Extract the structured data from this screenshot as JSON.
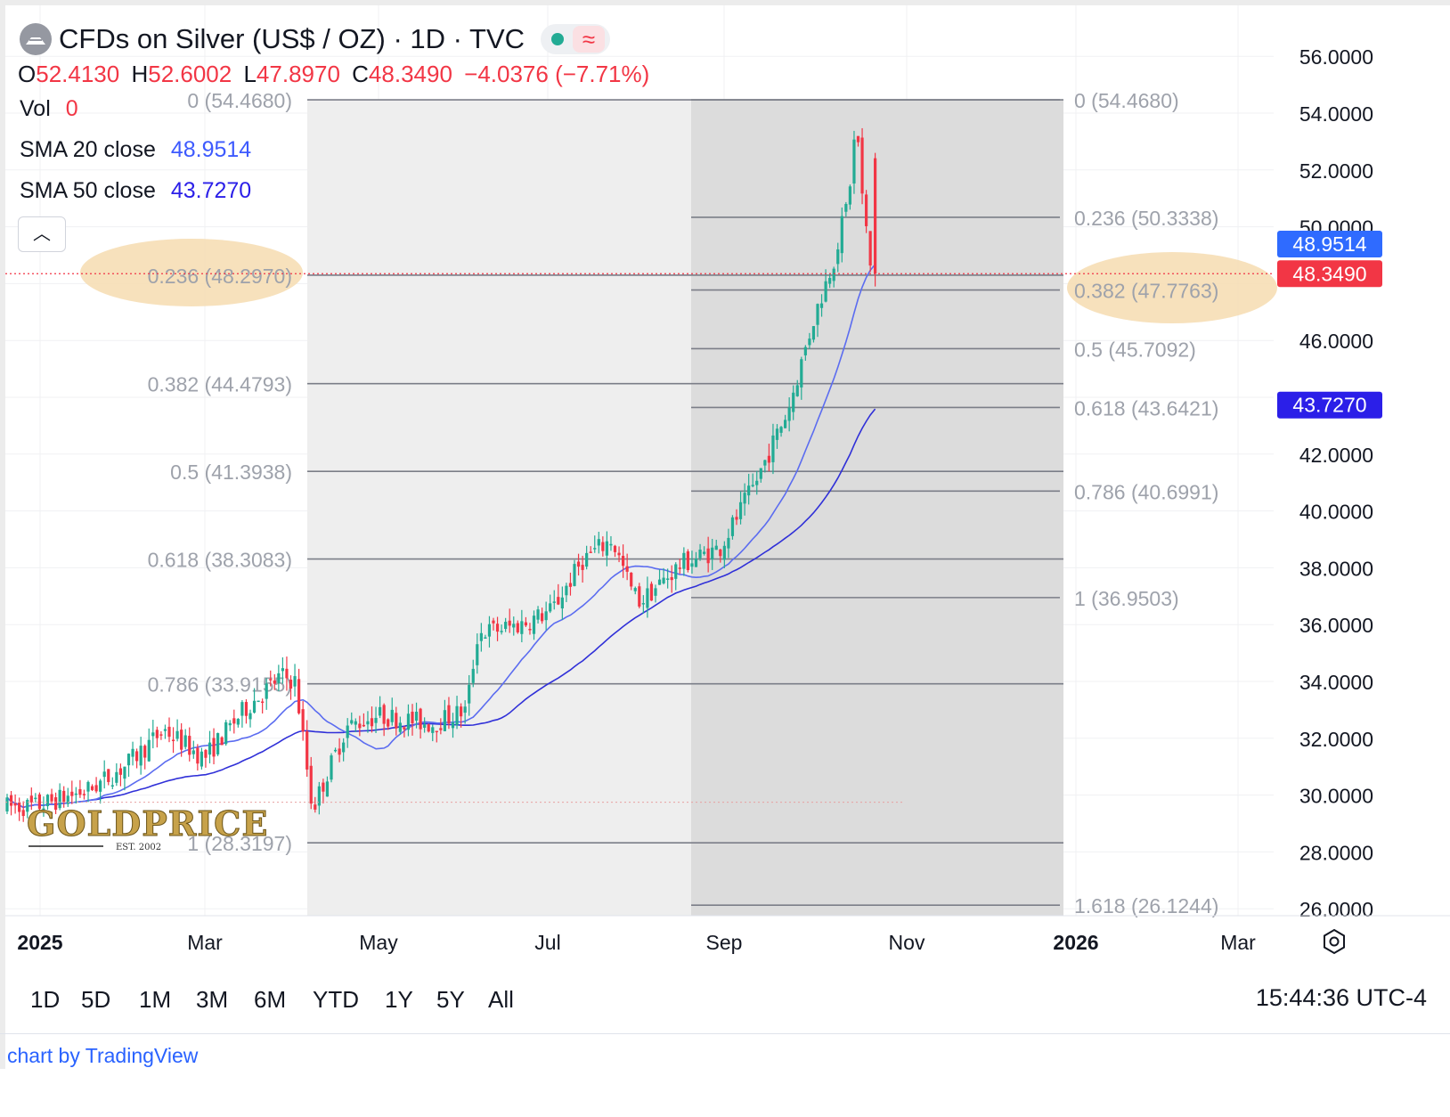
{
  "header": {
    "title": "CFDs on Silver (US$ / OZ) · 1D · TVC",
    "status_icon": "market-open-dot",
    "wave_icon": "≈",
    "ohlc": {
      "o_label": "O",
      "o_value": "52.4130",
      "h_label": "H",
      "h_value": "52.6002",
      "l_label": "L",
      "l_value": "47.8970",
      "c_label": "C",
      "c_value": "48.3490",
      "change": "−4.0376 (−7.71%)"
    },
    "indicators": [
      {
        "label": "Vol",
        "value": "0"
      },
      {
        "label": "SMA 20 close",
        "value": "48.9514"
      },
      {
        "label": "SMA 50 close",
        "value": "43.7270"
      }
    ],
    "collapse_icon": "chevron-up-icon"
  },
  "colors": {
    "up": "#22ab94",
    "down": "#f23645",
    "sma20": "#5b6cf0",
    "sma50": "#3030d8",
    "fib_line": "#7b7e88",
    "fib_text": "#9ea2ab",
    "highlight": "#f6dcb0",
    "shade_light": "#eeeeee",
    "shade_dark": "#dcdcdc"
  },
  "price_axis": {
    "ticks": [
      "56.0000",
      "54.0000",
      "52.0000",
      "50.0000",
      "46.0000",
      "42.0000",
      "40.0000",
      "38.0000",
      "36.0000",
      "34.0000",
      "32.0000",
      "30.0000",
      "28.0000",
      "26.0000"
    ],
    "badges": [
      {
        "label": "48.9514",
        "color": "#2f6bff"
      },
      {
        "label": "48.3490",
        "color": "#f23645"
      },
      {
        "label": "43.7270",
        "color": "#2b1fe8"
      }
    ]
  },
  "time_axis": {
    "labels": [
      "2025",
      "Mar",
      "May",
      "Jul",
      "Sep",
      "Nov",
      "2026",
      "Mar"
    ],
    "bold": [
      true,
      false,
      false,
      false,
      false,
      false,
      true,
      false
    ],
    "settings_icon": "gear-icon"
  },
  "fib_left": [
    {
      "label": "0 (54.4680)"
    },
    {
      "label": "0.236 (48.2970)"
    },
    {
      "label": "0.382 (44.4793)"
    },
    {
      "label": "0.5 (41.3938)"
    },
    {
      "label": "0.618 (38.3083)"
    },
    {
      "label": "0.786 (33.9155)"
    },
    {
      "label": "1 (28.3197)"
    }
  ],
  "fib_right": [
    {
      "label": "0 (54.4680)"
    },
    {
      "label": "0.236 (50.3338)"
    },
    {
      "label": "0.382 (47.7763)"
    },
    {
      "label": "0.5 (45.7092)"
    },
    {
      "label": "0.618 (43.6421)"
    },
    {
      "label": "0.786 (40.6991)"
    },
    {
      "label": "1 (36.9503)"
    },
    {
      "label": "1.618 (26.1244)"
    }
  ],
  "watermark": {
    "text": "GOLDPRICE",
    "sub": "EST. 2002"
  },
  "range_buttons": [
    "1D",
    "5D",
    "1M",
    "3M",
    "6M",
    "YTD",
    "1Y",
    "5Y",
    "All"
  ],
  "clock": "15:44:36 UTC-4",
  "attribution": "chart by TradingView",
  "chart_data": {
    "type": "candlestick",
    "title": "CFDs on Silver (US$ / OZ) · 1D · TVC",
    "x_axis_ticks": [
      "2025",
      "Mar",
      "May",
      "Jul",
      "Sep",
      "Nov",
      "2026",
      "Mar"
    ],
    "ylim": [
      25.5,
      56.5
    ],
    "last_close": 48.349,
    "series": [
      {
        "name": "SMA 20 close",
        "last": 48.9514
      },
      {
        "name": "SMA 50 close",
        "last": 43.727
      }
    ],
    "fib_retracement_1": {
      "levels": [
        0,
        0.236,
        0.382,
        0.5,
        0.618,
        0.786,
        1
      ],
      "prices": [
        54.468,
        48.297,
        44.4793,
        41.3938,
        38.3083,
        33.9155,
        28.3197
      ]
    },
    "fib_retracement_2": {
      "levels": [
        0,
        0.236,
        0.382,
        0.5,
        0.618,
        0.786,
        1,
        1.618
      ],
      "prices": [
        54.468,
        50.3338,
        47.7763,
        45.7092,
        43.6421,
        40.6991,
        36.9503,
        26.1244
      ]
    },
    "close_path": [
      [
        "Jan 1",
        29.6
      ],
      [
        "Jan 20",
        30.2
      ],
      [
        "Feb 1",
        31.0
      ],
      [
        "Feb 15",
        32.3
      ],
      [
        "Mar 1",
        31.3
      ],
      [
        "Mar 15",
        33.0
      ],
      [
        "Mar 28",
        34.2
      ],
      [
        "Apr 2",
        34.0
      ],
      [
        "Apr 8",
        29.5
      ],
      [
        "Apr 20",
        32.4
      ],
      [
        "May 1",
        32.8
      ],
      [
        "May 20",
        32.5
      ],
      [
        "Jun 1",
        33.0
      ],
      [
        "Jun 5",
        35.7
      ],
      [
        "Jun 20",
        36.0
      ],
      [
        "Jul 1",
        36.5
      ],
      [
        "Jul 12",
        38.3
      ],
      [
        "Jul 22",
        39.0
      ],
      [
        "Jul 29",
        37.2
      ],
      [
        "Aug 1",
        36.8
      ],
      [
        "Aug 15",
        38.1
      ],
      [
        "Aug 29",
        38.7
      ],
      [
        "Sep 10",
        40.9
      ],
      [
        "Sep 22",
        43.6
      ],
      [
        "Oct 1",
        46.8
      ],
      [
        "Oct 8",
        48.9
      ],
      [
        "Oct 13",
        51.0
      ],
      [
        "Oct 16",
        53.9
      ],
      [
        "Oct 17",
        51.8
      ],
      [
        "Oct 21",
        48.35
      ]
    ]
  }
}
